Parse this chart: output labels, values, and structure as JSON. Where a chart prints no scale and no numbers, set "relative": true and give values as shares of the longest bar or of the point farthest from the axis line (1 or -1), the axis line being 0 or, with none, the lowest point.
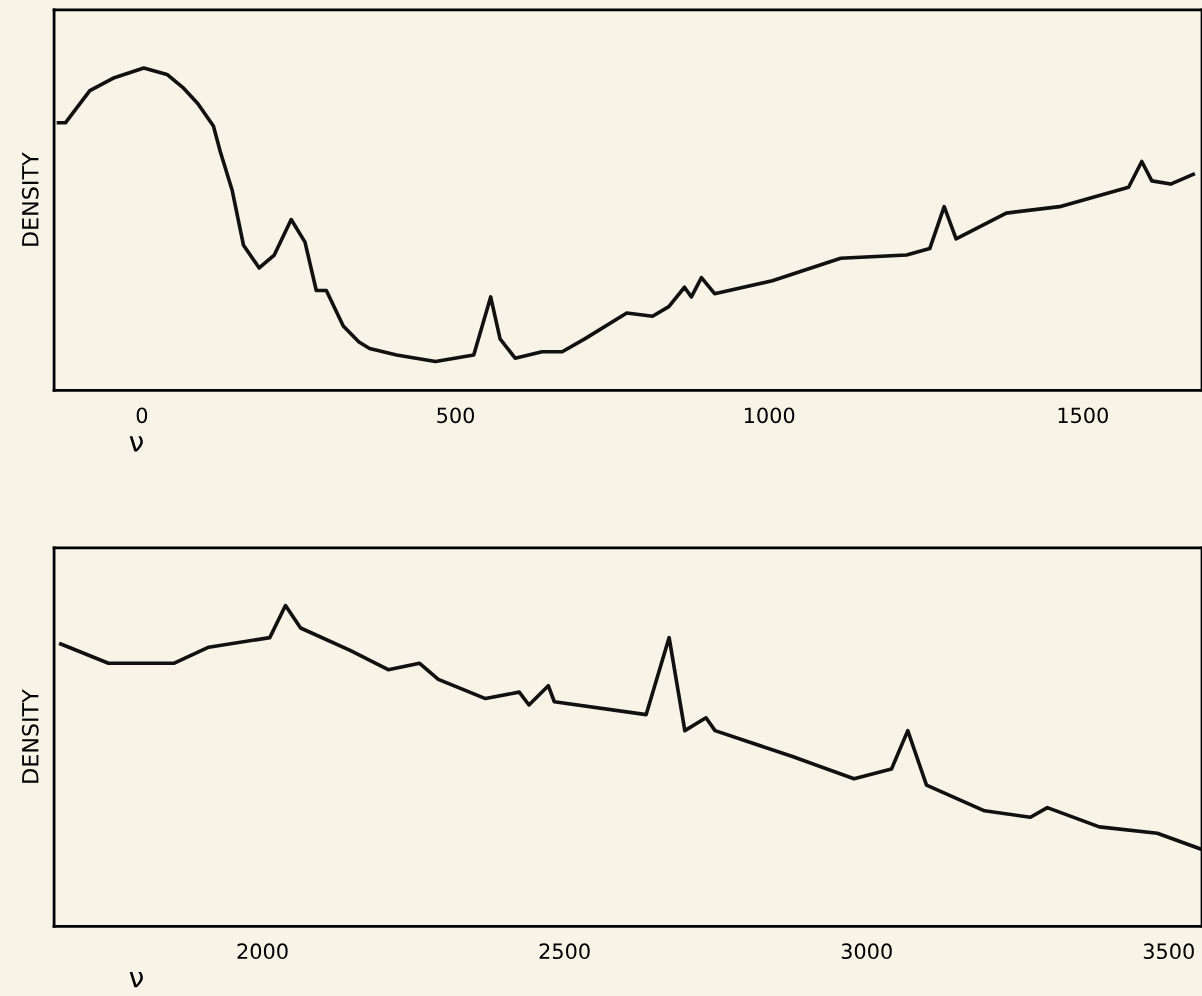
{
  "chart_data": [
    {
      "type": "line",
      "xlabel": "ν",
      "ylabel": "DENSITY",
      "relative": true,
      "xlim": [
        -140,
        1690
      ],
      "xticks": [
        0,
        500,
        1000,
        1500
      ],
      "grid": false,
      "legend": false,
      "marker": "none",
      "line_style": "solid",
      "series": [
        {
          "color": "#111111",
          "x": [
            -133,
            -122,
            -83,
            -44,
            3,
            40,
            65,
            89,
            114,
            125,
            144,
            162,
            187,
            211,
            238,
            260,
            278,
            294,
            321,
            346,
            363,
            406,
            468,
            529,
            556,
            571,
            595,
            638,
            670,
            706,
            773,
            814,
            840,
            865,
            876,
            892,
            913,
            1005,
            1114,
            1219,
            1256,
            1279,
            1298,
            1378,
            1463,
            1573,
            1594,
            1610,
            1640,
            1676
          ],
          "values": [
            0.83,
            0.83,
            0.93,
            0.97,
            1.0,
            0.98,
            0.94,
            0.89,
            0.82,
            0.74,
            0.62,
            0.45,
            0.38,
            0.42,
            0.53,
            0.46,
            0.31,
            0.31,
            0.2,
            0.15,
            0.13,
            0.11,
            0.09,
            0.11,
            0.29,
            0.16,
            0.1,
            0.12,
            0.12,
            0.16,
            0.24,
            0.23,
            0.26,
            0.32,
            0.29,
            0.35,
            0.3,
            0.34,
            0.41,
            0.42,
            0.44,
            0.57,
            0.47,
            0.55,
            0.57,
            0.63,
            0.71,
            0.65,
            0.64,
            0.67
          ]
        }
      ]
    },
    {
      "type": "line",
      "xlabel": "ν",
      "ylabel": "DENSITY",
      "relative": true,
      "xlim": [
        1655,
        3555
      ],
      "xticks": [
        2000,
        2500,
        3000,
        3500
      ],
      "grid": false,
      "legend": false,
      "marker": "none",
      "line_style": "solid",
      "series": [
        {
          "color": "#111111",
          "x": [
            1666,
            1745,
            1853,
            1911,
            2012,
            2038,
            2063,
            2145,
            2208,
            2260,
            2291,
            2369,
            2425,
            2441,
            2473,
            2483,
            2635,
            2673,
            2699,
            2734,
            2749,
            2876,
            2979,
            3041,
            3068,
            3099,
            3195,
            3271,
            3299,
            3385,
            3481,
            3554
          ],
          "values": [
            0.88,
            0.82,
            0.82,
            0.87,
            0.9,
            1.0,
            0.93,
            0.86,
            0.8,
            0.82,
            0.77,
            0.71,
            0.73,
            0.69,
            0.75,
            0.7,
            0.66,
            0.9,
            0.61,
            0.65,
            0.61,
            0.53,
            0.46,
            0.49,
            0.61,
            0.44,
            0.36,
            0.34,
            0.37,
            0.31,
            0.29,
            0.24
          ]
        }
      ]
    }
  ]
}
